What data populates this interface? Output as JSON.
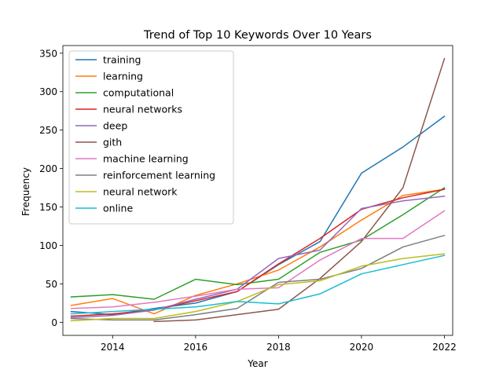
{
  "chart_data": {
    "type": "line",
    "title": "Trend of Top 10 Keywords Over 10 Years",
    "xlabel": "Year",
    "ylabel": "Frequency",
    "xlim": [
      2012.8,
      2022.2
    ],
    "ylim": [
      -17,
      360
    ],
    "xticks": [
      2014,
      2016,
      2018,
      2020,
      2022
    ],
    "yticks": [
      0,
      50,
      100,
      150,
      200,
      250,
      300,
      350
    ],
    "legend_position": "upper-left",
    "series": [
      {
        "name": "training",
        "color": "#1f77b4",
        "x": [
          2013,
          2014,
          2015,
          2016,
          2017,
          2018,
          2019,
          2020,
          2021,
          2022
        ],
        "y": [
          14,
          10,
          18,
          25,
          40,
          75,
          105,
          194,
          228,
          268
        ]
      },
      {
        "name": "learning",
        "color": "#ff7f0e",
        "x": [
          2013,
          2014,
          2015,
          2016,
          2017,
          2018,
          2019,
          2020,
          2021,
          2022
        ],
        "y": [
          22,
          31,
          11,
          35,
          50,
          68,
          98,
          133,
          165,
          173
        ]
      },
      {
        "name": "computational",
        "color": "#2ca02c",
        "x": [
          2013,
          2014,
          2015,
          2016,
          2017,
          2018,
          2019,
          2020,
          2021,
          2022
        ],
        "y": [
          33,
          36,
          30,
          56,
          49,
          56,
          91,
          107,
          140,
          175
        ]
      },
      {
        "name": "neural networks",
        "color": "#d62728",
        "x": [
          2013,
          2014,
          2015,
          2016,
          2017,
          2018,
          2019,
          2020,
          2021,
          2022
        ],
        "y": [
          8,
          11,
          16,
          28,
          40,
          76,
          109,
          147,
          162,
          173
        ]
      },
      {
        "name": "deep",
        "color": "#9467bd",
        "x": [
          2013,
          2014,
          2015,
          2016,
          2017,
          2018,
          2019,
          2020,
          2021,
          2022
        ],
        "y": [
          6,
          9,
          16,
          30,
          43,
          83,
          94,
          148,
          158,
          164
        ]
      },
      {
        "name": "gith",
        "color": "#8c564b",
        "x": [
          2015,
          2016,
          2017,
          2018,
          2019,
          2020,
          2021,
          2022
        ],
        "y": [
          1,
          3,
          10,
          17,
          57,
          105,
          175,
          343
        ]
      },
      {
        "name": "machine learning",
        "color": "#e377c2",
        "x": [
          2013,
          2014,
          2015,
          2016,
          2017,
          2018,
          2019,
          2020,
          2021,
          2022
        ],
        "y": [
          18,
          20,
          26,
          34,
          43,
          45,
          81,
          109,
          109,
          145
        ]
      },
      {
        "name": "reinforcement learning",
        "color": "#7f7f7f",
        "x": [
          2013,
          2014,
          2015,
          2016,
          2017,
          2018,
          2019,
          2020,
          2021,
          2022
        ],
        "y": [
          5,
          3,
          3,
          10,
          18,
          52,
          56,
          70,
          98,
          113
        ]
      },
      {
        "name": "neural network",
        "color": "#bcbd22",
        "x": [
          2013,
          2014,
          2015,
          2016,
          2017,
          2018,
          2019,
          2020,
          2021,
          2022
        ],
        "y": [
          2,
          5,
          5,
          14,
          27,
          49,
          54,
          73,
          83,
          89
        ]
      },
      {
        "name": "online",
        "color": "#17becf",
        "x": [
          2013,
          2014,
          2015,
          2016,
          2017,
          2018,
          2019,
          2020,
          2021,
          2022
        ],
        "y": [
          11,
          14,
          17,
          20,
          27,
          24,
          37,
          63,
          75,
          87
        ]
      }
    ]
  }
}
